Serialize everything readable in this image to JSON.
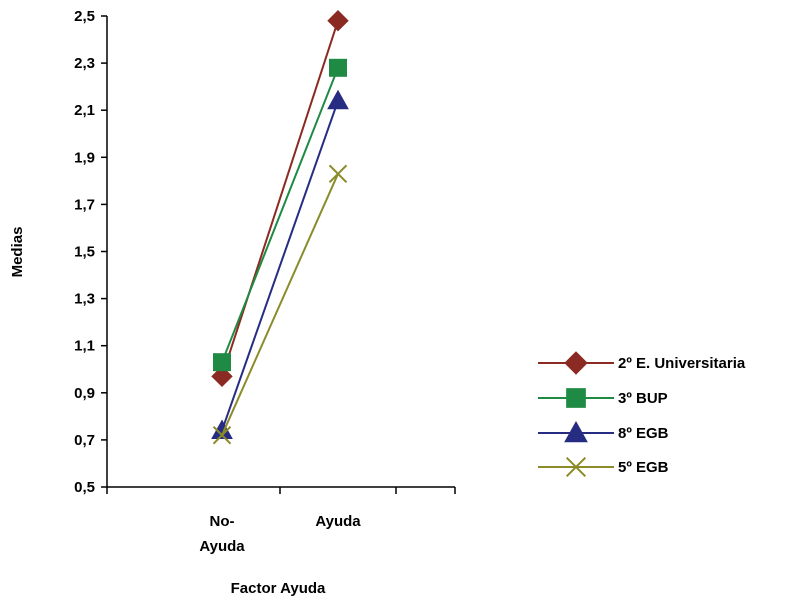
{
  "chart_data": {
    "type": "line",
    "title": "",
    "xlabel": "Factor Ayuda",
    "ylabel": "Medias",
    "categories": [
      [
        "No-",
        "Ayuda"
      ],
      [
        "Ayuda"
      ]
    ],
    "yticks": [
      "0,5",
      "0,7",
      "0,9",
      "1,1",
      "1,3",
      "1,5",
      "1,7",
      "1,9",
      "2,1",
      "2,3",
      "2,5"
    ],
    "ylim": [
      0.5,
      2.5
    ],
    "grid": false,
    "legend_position": "right",
    "series": [
      {
        "name": "2º E. Universitaria",
        "values": [
          0.97,
          2.48
        ],
        "color": "#8b2a22",
        "marker": "diamond"
      },
      {
        "name": "3º BUP",
        "values": [
          1.03,
          2.28
        ],
        "color": "#1e8a44",
        "marker": "square"
      },
      {
        "name": "8º EGB",
        "values": [
          0.74,
          2.14
        ],
        "color": "#262c82",
        "marker": "triangle"
      },
      {
        "name": "5º EGB",
        "values": [
          0.72,
          1.83
        ],
        "color": "#8b8b2a",
        "marker": "x"
      }
    ]
  }
}
